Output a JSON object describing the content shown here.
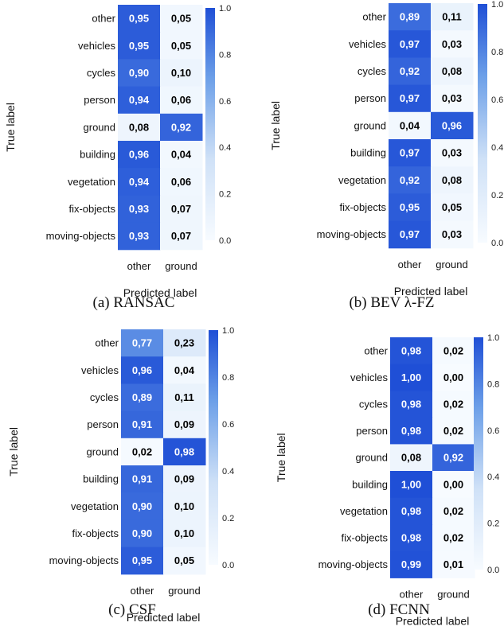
{
  "chart_data": [
    {
      "type": "heatmap",
      "caption": "(a) RANSAC",
      "xlabel": "Predicted label",
      "ylabel": "True label",
      "rows": [
        "other",
        "vehicles",
        "cycles",
        "person",
        "ground",
        "building",
        "vegetation",
        "fix-objects",
        "moving-objects"
      ],
      "columns": [
        "other",
        "ground"
      ],
      "values": [
        [
          0.95,
          0.05
        ],
        [
          0.95,
          0.05
        ],
        [
          0.9,
          0.1
        ],
        [
          0.94,
          0.06
        ],
        [
          0.08,
          0.92
        ],
        [
          0.96,
          0.04
        ],
        [
          0.94,
          0.06
        ],
        [
          0.93,
          0.07
        ],
        [
          0.93,
          0.07
        ]
      ],
      "value_labels": [
        [
          "0,95",
          "0,05"
        ],
        [
          "0,95",
          "0,05"
        ],
        [
          "0,90",
          "0,10"
        ],
        [
          "0,94",
          "0,06"
        ],
        [
          "0,08",
          "0,92"
        ],
        [
          "0,96",
          "0,04"
        ],
        [
          "0,94",
          "0,06"
        ],
        [
          "0,93",
          "0,07"
        ],
        [
          "0,93",
          "0,07"
        ]
      ],
      "colorbar_range": [
        0.0,
        1.0
      ],
      "colorbar_ticks": [
        "0.0",
        "0.2",
        "0.4",
        "0.6",
        "0.8",
        "1.0"
      ]
    },
    {
      "type": "heatmap",
      "caption": "(b) BEV λ-FZ",
      "xlabel": "Predicted label",
      "ylabel": "True label",
      "rows": [
        "other",
        "vehicles",
        "cycles",
        "person",
        "ground",
        "building",
        "vegetation",
        "fix-objects",
        "moving-objects"
      ],
      "columns": [
        "other",
        "ground"
      ],
      "values": [
        [
          0.89,
          0.11
        ],
        [
          0.97,
          0.03
        ],
        [
          0.92,
          0.08
        ],
        [
          0.97,
          0.03
        ],
        [
          0.04,
          0.96
        ],
        [
          0.97,
          0.03
        ],
        [
          0.92,
          0.08
        ],
        [
          0.95,
          0.05
        ],
        [
          0.97,
          0.03
        ]
      ],
      "value_labels": [
        [
          "0,89",
          "0,11"
        ],
        [
          "0,97",
          "0,03"
        ],
        [
          "0,92",
          "0,08"
        ],
        [
          "0,97",
          "0,03"
        ],
        [
          "0,04",
          "0,96"
        ],
        [
          "0,97",
          "0,03"
        ],
        [
          "0,92",
          "0,08"
        ],
        [
          "0,95",
          "0,05"
        ],
        [
          "0,97",
          "0,03"
        ]
      ],
      "colorbar_range": [
        0.0,
        1.0
      ],
      "colorbar_ticks": [
        "0.0",
        "0.2",
        "0.4",
        "0.6",
        "0.8",
        "1.0"
      ]
    },
    {
      "type": "heatmap",
      "caption": "(c) CSF",
      "xlabel": "Predicted label",
      "ylabel": "True label",
      "rows": [
        "other",
        "vehicles",
        "cycles",
        "person",
        "ground",
        "building",
        "vegetation",
        "fix-objects",
        "moving-objects"
      ],
      "columns": [
        "other",
        "ground"
      ],
      "values": [
        [
          0.77,
          0.23
        ],
        [
          0.96,
          0.04
        ],
        [
          0.89,
          0.11
        ],
        [
          0.91,
          0.09
        ],
        [
          0.02,
          0.98
        ],
        [
          0.91,
          0.09
        ],
        [
          0.9,
          0.1
        ],
        [
          0.9,
          0.1
        ],
        [
          0.95,
          0.05
        ]
      ],
      "value_labels": [
        [
          "0,77",
          "0,23"
        ],
        [
          "0,96",
          "0,04"
        ],
        [
          "0,89",
          "0,11"
        ],
        [
          "0,91",
          "0,09"
        ],
        [
          "0,02",
          "0,98"
        ],
        [
          "0,91",
          "0,09"
        ],
        [
          "0,90",
          "0,10"
        ],
        [
          "0,90",
          "0,10"
        ],
        [
          "0,95",
          "0,05"
        ]
      ],
      "colorbar_range": [
        0.0,
        1.0
      ],
      "colorbar_ticks": [
        "0.0",
        "0.2",
        "0.4",
        "0.6",
        "0.8",
        "1.0"
      ]
    },
    {
      "type": "heatmap",
      "caption": "(d) FCNN",
      "xlabel": "Predicted label",
      "ylabel": "True label",
      "rows": [
        "other",
        "vehicles",
        "cycles",
        "person",
        "ground",
        "building",
        "vegetation",
        "fix-objects",
        "moving-objects"
      ],
      "columns": [
        "other",
        "ground"
      ],
      "values": [
        [
          0.98,
          0.02
        ],
        [
          1.0,
          0.0
        ],
        [
          0.98,
          0.02
        ],
        [
          0.98,
          0.02
        ],
        [
          0.08,
          0.92
        ],
        [
          1.0,
          0.0
        ],
        [
          0.98,
          0.02
        ],
        [
          0.98,
          0.02
        ],
        [
          0.99,
          0.01
        ]
      ],
      "value_labels": [
        [
          "0,98",
          "0,02"
        ],
        [
          "1,00",
          "0,00"
        ],
        [
          "0,98",
          "0,02"
        ],
        [
          "0,98",
          "0,02"
        ],
        [
          "0,08",
          "0,92"
        ],
        [
          "1,00",
          "0,00"
        ],
        [
          "0,98",
          "0,02"
        ],
        [
          "0,98",
          "0,02"
        ],
        [
          "0,99",
          "0,01"
        ]
      ],
      "colorbar_range": [
        0.0,
        1.0
      ],
      "colorbar_ticks": [
        "0.0",
        "0.2",
        "0.4",
        "0.6",
        "0.8",
        "1.0"
      ]
    }
  ],
  "colors": {
    "low": "#f7fbff",
    "high": "#1f4fd6",
    "text_dark": "#000000",
    "text_light": "#ffffff"
  }
}
